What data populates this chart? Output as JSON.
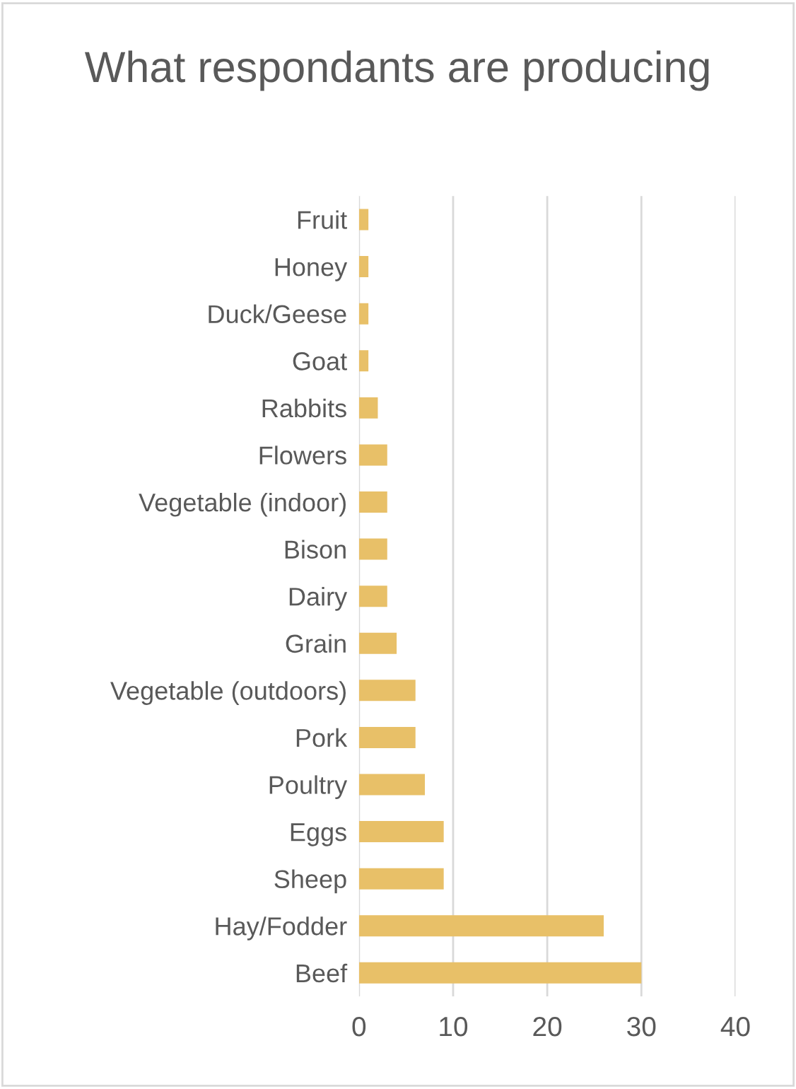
{
  "chart_data": {
    "type": "bar",
    "orientation": "horizontal",
    "title": "What respondants are producing",
    "categories": [
      "Fruit",
      "Honey",
      "Duck/Geese",
      "Goat",
      "Rabbits",
      "Flowers",
      "Vegetable (indoor)",
      "Bison",
      "Dairy",
      "Grain",
      "Vegetable (outdoors)",
      "Pork",
      "Poultry",
      "Eggs",
      "Sheep",
      "Hay/Fodder",
      "Beef"
    ],
    "values": [
      1,
      1,
      1,
      1,
      2,
      3,
      3,
      3,
      3,
      4,
      6,
      6,
      7,
      9,
      9,
      26,
      30
    ],
    "color": "#e8c068",
    "xlim": [
      0,
      40
    ],
    "xticks": [
      0,
      10,
      20,
      30,
      40
    ],
    "grid": "x",
    "legend": false
  }
}
